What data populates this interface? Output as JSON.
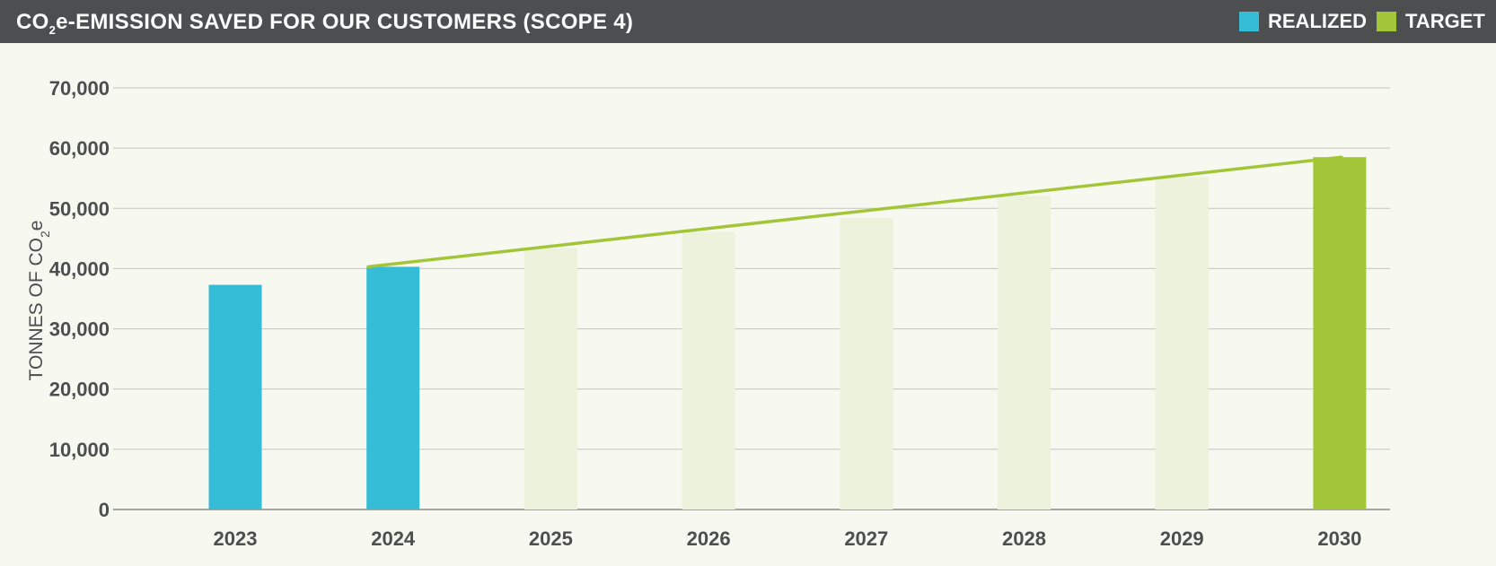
{
  "chart_data": {
    "type": "bar",
    "title": "CO",
    "title_sub": "2",
    "title_rest": "e-EMISSION SAVED FOR OUR CUSTOMERS (SCOPE 4)",
    "ylabel_main": "TONNES OF CO",
    "ylabel_sub": "2",
    "ylabel_tail": "e",
    "ylim": [
      0,
      70000
    ],
    "yticks": [
      0,
      10000,
      20000,
      30000,
      40000,
      50000,
      60000,
      70000
    ],
    "ytick_labels": [
      "0",
      "10,000",
      "20,000",
      "30,000",
      "40,000",
      "50,000",
      "60,000",
      "70,000"
    ],
    "categories": [
      "2023",
      "2024",
      "2025",
      "2026",
      "2027",
      "2028",
      "2029",
      "2030"
    ],
    "series": [
      {
        "name": "REALIZED",
        "color": "#35bcd7",
        "values": [
          37300,
          40300,
          null,
          null,
          null,
          null,
          null,
          null
        ]
      },
      {
        "name": "TARGET",
        "color": "#a3c639",
        "values": [
          null,
          null,
          null,
          null,
          null,
          null,
          null,
          58500
        ]
      }
    ],
    "projection_bars": {
      "color": "#ecf2dc",
      "values": [
        null,
        null,
        43400,
        46100,
        48400,
        52100,
        55200,
        null
      ]
    },
    "target_line": {
      "color": "#a3c639",
      "from": {
        "x": "2024",
        "y": 40300
      },
      "to": {
        "x": "2030",
        "y": 58500
      }
    },
    "grid": true,
    "legend": "top-right"
  }
}
